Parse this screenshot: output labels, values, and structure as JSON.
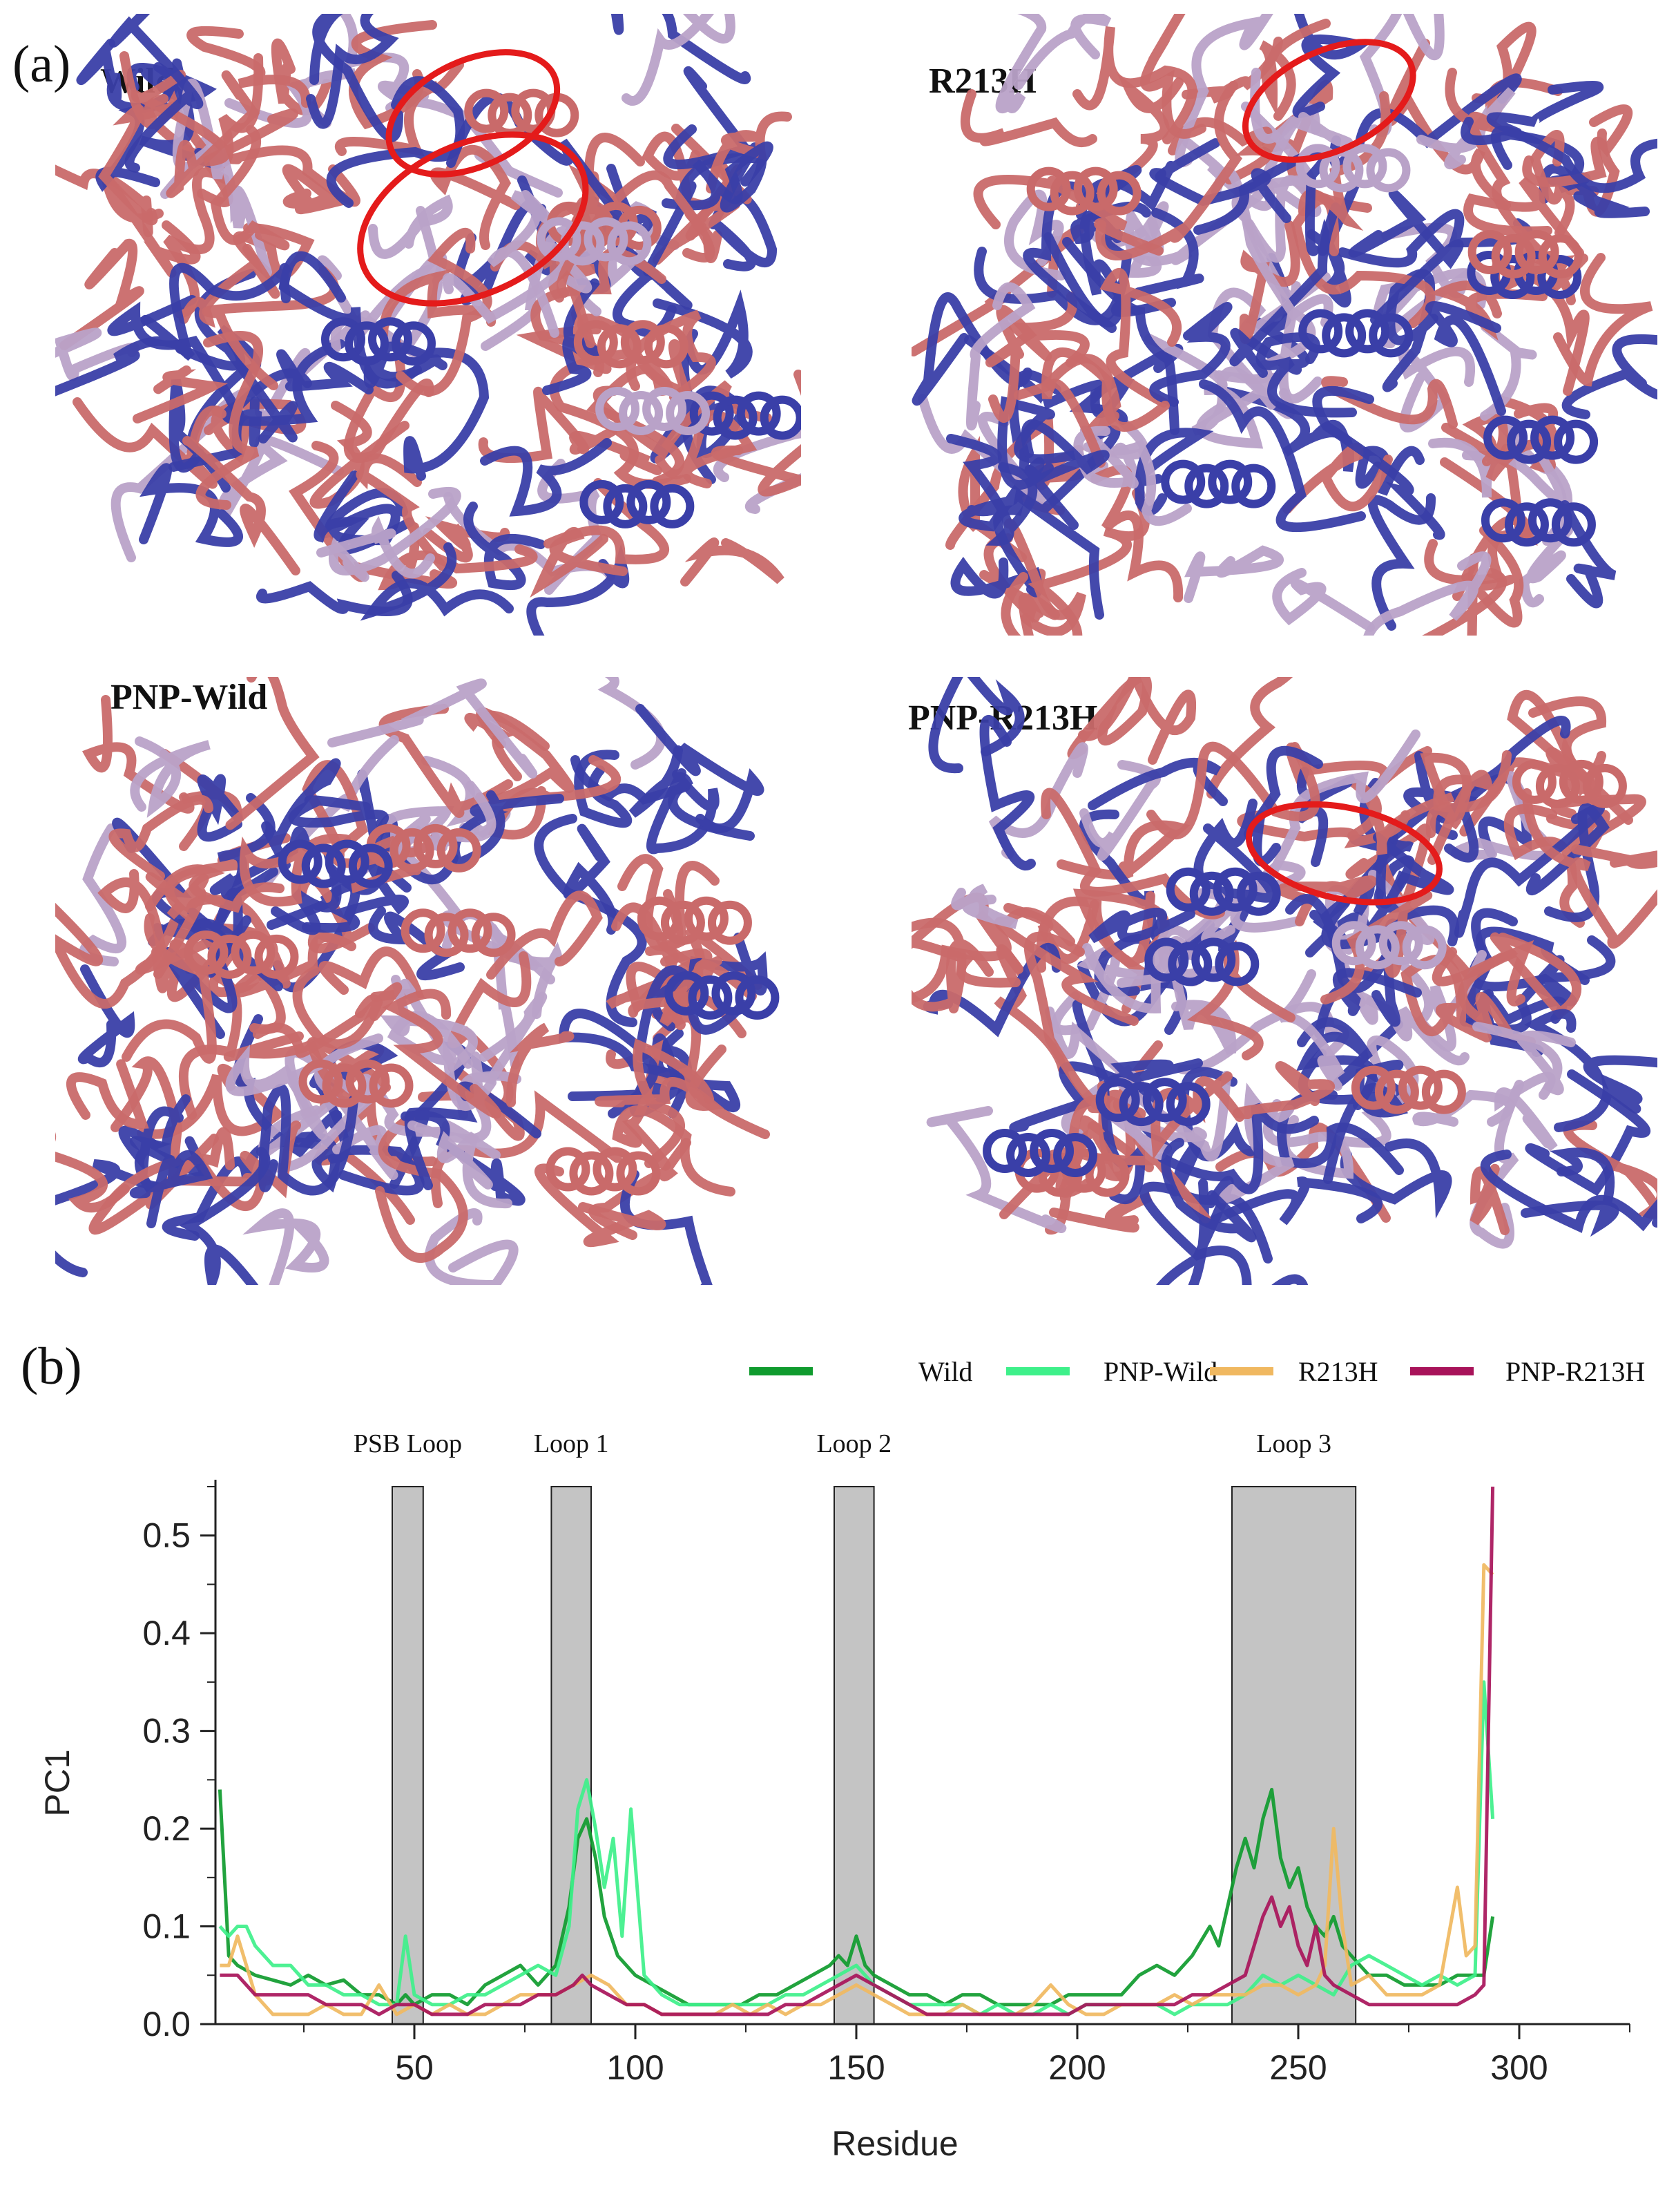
{
  "panel_a": {
    "letter": "(a)",
    "structures": [
      {
        "label": "Wild",
        "circles": 2
      },
      {
        "label": "R213H",
        "circles": 1
      },
      {
        "label": "PNP-Wild",
        "circles": 0
      },
      {
        "label": "PNP-R213H",
        "circles": 1
      }
    ],
    "colors": {
      "flexible": "#c96a6a",
      "rigid": "#3a3fa8",
      "mid": "#b9a2c8",
      "highlight": "#e41b1b"
    }
  },
  "panel_b": {
    "letter": "(b)"
  },
  "chart_data": {
    "type": "line",
    "xlabel": "Residue",
    "ylabel": "PC1",
    "xlim": [
      5,
      325
    ],
    "ylim": [
      0,
      0.55
    ],
    "xticks": [
      50,
      100,
      150,
      200,
      250,
      300
    ],
    "xtick_labels": [
      "50",
      "100",
      "150",
      "200",
      "250",
      "300"
    ],
    "yticks": [
      0.0,
      0.1,
      0.2,
      0.3,
      0.4,
      0.5
    ],
    "ytick_labels": [
      "0.0",
      "0.1",
      "0.2",
      "0.3",
      "0.4",
      "0.5"
    ],
    "grid": false,
    "legend_position": "top",
    "regions": [
      {
        "label": "PSB Loop",
        "start": 45,
        "end": 52
      },
      {
        "label": "Loop 1",
        "start": 81,
        "end": 90
      },
      {
        "label": "Loop 2",
        "start": 145,
        "end": 154
      },
      {
        "label": "Loop 3",
        "start": 235,
        "end": 263
      }
    ],
    "series": [
      {
        "name": "Wild",
        "color": "#0f9b2e",
        "x": [
          6,
          8,
          10,
          14,
          18,
          22,
          26,
          30,
          34,
          38,
          42,
          46,
          48,
          50,
          54,
          58,
          62,
          66,
          70,
          74,
          78,
          82,
          85,
          87,
          89,
          91,
          93,
          96,
          100,
          104,
          108,
          112,
          116,
          120,
          124,
          128,
          132,
          136,
          140,
          144,
          146,
          148,
          150,
          152,
          154,
          158,
          162,
          166,
          170,
          174,
          178,
          182,
          186,
          190,
          194,
          198,
          202,
          206,
          210,
          214,
          218,
          222,
          226,
          230,
          232,
          234,
          236,
          238,
          240,
          242,
          244,
          246,
          248,
          250,
          252,
          254,
          256,
          258,
          260,
          262,
          266,
          270,
          274,
          278,
          282,
          286,
          290,
          292,
          294
        ],
        "y": [
          0.24,
          0.07,
          0.06,
          0.05,
          0.045,
          0.04,
          0.05,
          0.04,
          0.045,
          0.03,
          0.03,
          0.02,
          0.03,
          0.02,
          0.03,
          0.03,
          0.02,
          0.04,
          0.05,
          0.06,
          0.04,
          0.06,
          0.12,
          0.19,
          0.21,
          0.17,
          0.11,
          0.07,
          0.05,
          0.04,
          0.03,
          0.02,
          0.02,
          0.02,
          0.02,
          0.03,
          0.03,
          0.04,
          0.05,
          0.06,
          0.07,
          0.06,
          0.09,
          0.06,
          0.05,
          0.04,
          0.03,
          0.03,
          0.02,
          0.03,
          0.03,
          0.02,
          0.02,
          0.02,
          0.02,
          0.03,
          0.03,
          0.03,
          0.03,
          0.05,
          0.06,
          0.05,
          0.07,
          0.1,
          0.08,
          0.12,
          0.16,
          0.19,
          0.16,
          0.21,
          0.24,
          0.17,
          0.14,
          0.16,
          0.12,
          0.1,
          0.09,
          0.11,
          0.08,
          0.07,
          0.05,
          0.05,
          0.04,
          0.04,
          0.04,
          0.05,
          0.05,
          0.05,
          0.11
        ]
      },
      {
        "name": "PNP-Wild",
        "color": "#3ef08a",
        "x": [
          6,
          8,
          10,
          12,
          14,
          18,
          22,
          26,
          30,
          34,
          38,
          42,
          46,
          48,
          50,
          54,
          58,
          62,
          66,
          70,
          74,
          78,
          82,
          85,
          87,
          89,
          91,
          93,
          95,
          97,
          99,
          102,
          106,
          110,
          114,
          118,
          122,
          126,
          130,
          134,
          138,
          142,
          146,
          150,
          154,
          158,
          162,
          166,
          170,
          174,
          178,
          182,
          186,
          190,
          194,
          198,
          202,
          206,
          210,
          214,
          218,
          222,
          226,
          230,
          234,
          238,
          242,
          246,
          250,
          254,
          258,
          262,
          266,
          270,
          274,
          278,
          282,
          286,
          290,
          292,
          294
        ],
        "y": [
          0.1,
          0.09,
          0.1,
          0.1,
          0.08,
          0.06,
          0.06,
          0.04,
          0.04,
          0.03,
          0.03,
          0.02,
          0.02,
          0.09,
          0.03,
          0.02,
          0.02,
          0.03,
          0.03,
          0.04,
          0.05,
          0.06,
          0.05,
          0.1,
          0.22,
          0.25,
          0.2,
          0.14,
          0.19,
          0.09,
          0.22,
          0.05,
          0.03,
          0.02,
          0.02,
          0.02,
          0.02,
          0.02,
          0.02,
          0.03,
          0.03,
          0.04,
          0.05,
          0.06,
          0.04,
          0.03,
          0.02,
          0.02,
          0.02,
          0.02,
          0.01,
          0.02,
          0.01,
          0.01,
          0.02,
          0.01,
          0.02,
          0.02,
          0.02,
          0.02,
          0.02,
          0.01,
          0.02,
          0.02,
          0.02,
          0.03,
          0.05,
          0.04,
          0.05,
          0.04,
          0.03,
          0.06,
          0.07,
          0.06,
          0.05,
          0.04,
          0.05,
          0.04,
          0.05,
          0.35,
          0.21
        ]
      },
      {
        "name": "R213H",
        "color": "#f0b860",
        "x": [
          6,
          8,
          10,
          12,
          14,
          18,
          22,
          26,
          30,
          34,
          38,
          42,
          46,
          50,
          54,
          58,
          62,
          66,
          70,
          74,
          78,
          82,
          86,
          90,
          94,
          98,
          102,
          106,
          110,
          114,
          118,
          122,
          126,
          130,
          134,
          138,
          142,
          146,
          150,
          154,
          158,
          162,
          166,
          170,
          174,
          178,
          182,
          186,
          190,
          194,
          198,
          202,
          206,
          210,
          214,
          218,
          222,
          226,
          230,
          234,
          238,
          242,
          246,
          250,
          254,
          256,
          258,
          260,
          262,
          266,
          270,
          274,
          278,
          282,
          286,
          288,
          290,
          292,
          294
        ],
        "y": [
          0.06,
          0.06,
          0.09,
          0.06,
          0.03,
          0.01,
          0.01,
          0.01,
          0.02,
          0.01,
          0.01,
          0.04,
          0.01,
          0.02,
          0.01,
          0.02,
          0.01,
          0.01,
          0.02,
          0.03,
          0.03,
          0.03,
          0.04,
          0.05,
          0.04,
          0.02,
          0.02,
          0.01,
          0.01,
          0.01,
          0.01,
          0.02,
          0.01,
          0.02,
          0.01,
          0.02,
          0.02,
          0.03,
          0.04,
          0.03,
          0.02,
          0.01,
          0.01,
          0.01,
          0.02,
          0.01,
          0.01,
          0.01,
          0.02,
          0.04,
          0.02,
          0.01,
          0.01,
          0.02,
          0.02,
          0.02,
          0.03,
          0.02,
          0.03,
          0.03,
          0.03,
          0.04,
          0.04,
          0.03,
          0.04,
          0.06,
          0.2,
          0.1,
          0.04,
          0.05,
          0.03,
          0.03,
          0.03,
          0.04,
          0.14,
          0.07,
          0.08,
          0.47,
          0.46
        ]
      },
      {
        "name": "PNP-R213H",
        "color": "#a8135a",
        "x": [
          6,
          8,
          10,
          14,
          18,
          22,
          26,
          30,
          34,
          38,
          42,
          46,
          50,
          54,
          58,
          62,
          66,
          70,
          74,
          78,
          82,
          86,
          88,
          90,
          94,
          98,
          102,
          106,
          110,
          114,
          118,
          122,
          126,
          130,
          134,
          138,
          142,
          146,
          150,
          154,
          158,
          162,
          166,
          170,
          174,
          178,
          182,
          186,
          190,
          194,
          198,
          202,
          206,
          210,
          214,
          218,
          222,
          226,
          230,
          234,
          238,
          240,
          242,
          244,
          246,
          248,
          250,
          252,
          254,
          256,
          258,
          262,
          266,
          270,
          274,
          278,
          282,
          286,
          290,
          292,
          294
        ],
        "y": [
          0.05,
          0.05,
          0.05,
          0.03,
          0.03,
          0.03,
          0.03,
          0.02,
          0.02,
          0.02,
          0.01,
          0.02,
          0.02,
          0.01,
          0.01,
          0.01,
          0.02,
          0.02,
          0.02,
          0.03,
          0.03,
          0.04,
          0.05,
          0.04,
          0.03,
          0.02,
          0.02,
          0.01,
          0.01,
          0.01,
          0.01,
          0.01,
          0.01,
          0.01,
          0.02,
          0.02,
          0.03,
          0.04,
          0.05,
          0.04,
          0.03,
          0.02,
          0.01,
          0.01,
          0.01,
          0.01,
          0.01,
          0.01,
          0.01,
          0.01,
          0.01,
          0.02,
          0.02,
          0.02,
          0.02,
          0.02,
          0.02,
          0.03,
          0.03,
          0.04,
          0.05,
          0.08,
          0.11,
          0.13,
          0.1,
          0.12,
          0.08,
          0.06,
          0.1,
          0.05,
          0.04,
          0.03,
          0.02,
          0.02,
          0.02,
          0.02,
          0.02,
          0.02,
          0.03,
          0.04,
          0.55
        ]
      }
    ]
  }
}
